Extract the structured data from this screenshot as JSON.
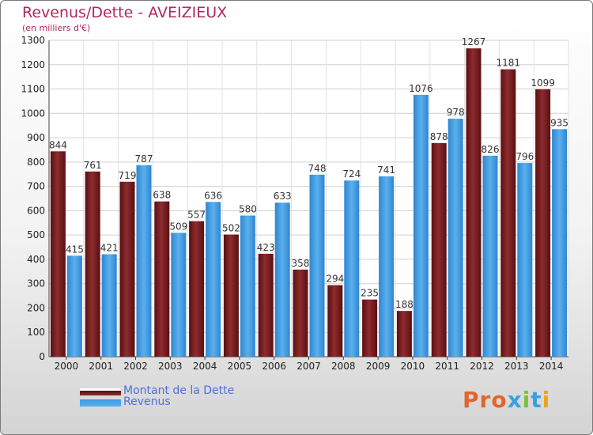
{
  "header": {
    "title": "Revenus/Dette - AVEIZIEUX",
    "subtitle": "(en milliers d'€)"
  },
  "chart_data": {
    "type": "bar",
    "categories": [
      "2000",
      "2001",
      "2002",
      "2003",
      "2004",
      "2005",
      "2006",
      "2007",
      "2008",
      "2009",
      "2010",
      "2011",
      "2012",
      "2013",
      "2014"
    ],
    "series": [
      {
        "name": "Montant de la Dette",
        "color": "#7a1c1c",
        "values": [
          844,
          761,
          719,
          638,
          557,
          502,
          423,
          358,
          294,
          235,
          188,
          878,
          1267,
          1181,
          1099
        ]
      },
      {
        "name": "Revenus",
        "color": "#3d9ae2",
        "values": [
          415,
          421,
          787,
          509,
          636,
          580,
          633,
          748,
          724,
          741,
          1076,
          978,
          826,
          796,
          935
        ]
      }
    ],
    "ylim": [
      0,
      1300
    ],
    "yticks": [
      0,
      100,
      200,
      300,
      400,
      500,
      600,
      700,
      800,
      900,
      1000,
      1100,
      1200,
      1300
    ],
    "grid": true,
    "legend": "bottom-left"
  },
  "legend": [
    {
      "label": "Montant de la Dette"
    },
    {
      "label": "Revenus"
    }
  ],
  "logo": {
    "text": "Proxiti",
    "colors": [
      "#e0662d",
      "#e0662d",
      "#e0662d",
      "#3aa0e0",
      "#7ac142",
      "#3aa0e0",
      "#f0a020"
    ]
  }
}
